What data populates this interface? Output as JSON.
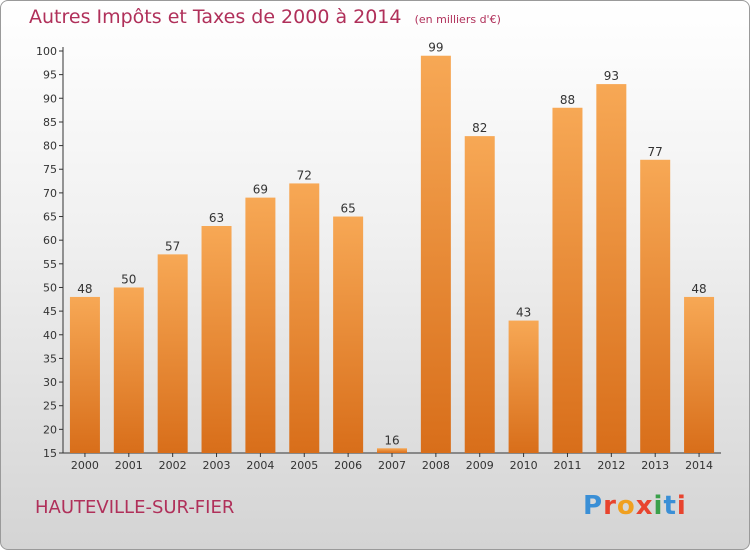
{
  "title": "Autres Impôts et Taxes de 2000 à 2014",
  "unit_note": "(en milliers d'€)",
  "commune": "HAUTEVILLE-SUR-FIER",
  "logo": {
    "letters": [
      "P",
      "r",
      "o",
      "x",
      "i",
      "t",
      "i"
    ],
    "colors": [
      "#3a8fd6",
      "#e8442e",
      "#f0a020",
      "#e8442e",
      "#3aa04a",
      "#3a8fd6",
      "#e8442e"
    ]
  },
  "colors": {
    "title": "#b0305a",
    "bar_light": "#f7a855",
    "bar_dark": "#d86e1a"
  },
  "chart_data": {
    "type": "bar",
    "title": "Autres Impôts et Taxes de 2000 à 2014",
    "subtitle": "(en milliers d'€)",
    "categories": [
      "2000",
      "2001",
      "2002",
      "2003",
      "2004",
      "2005",
      "2006",
      "2007",
      "2008",
      "2009",
      "2010",
      "2011",
      "2012",
      "2013",
      "2014"
    ],
    "values": [
      48,
      50,
      57,
      63,
      69,
      72,
      65,
      16,
      99,
      82,
      43,
      88,
      93,
      77,
      48
    ],
    "ylim": [
      15,
      100
    ],
    "yticks": [
      15,
      20,
      25,
      30,
      35,
      40,
      45,
      50,
      55,
      60,
      65,
      70,
      75,
      80,
      85,
      90,
      95,
      100
    ],
    "grid": false,
    "legend": "none"
  }
}
